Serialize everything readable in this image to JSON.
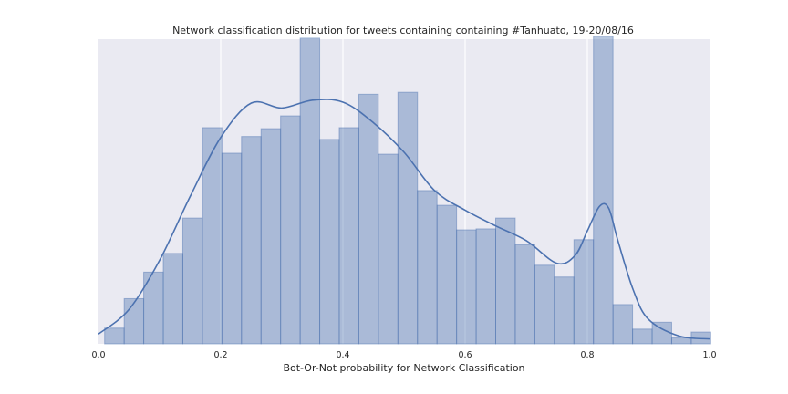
{
  "chart_data": {
    "type": "bar",
    "title": "Network classification distribution for tweets containing containing #Tanhuato, 19-20/08/16",
    "xlabel": "Bot-Or-Not probability for Network Classification",
    "ylabel": "",
    "xlim": [
      0.0,
      1.0
    ],
    "ylim": [
      0,
      310
    ],
    "x_ticks": [
      "0.0",
      "0.2",
      "0.4",
      "0.6",
      "0.8",
      "1.0"
    ],
    "grid": true,
    "histogram": {
      "bin_edges": [
        0.01,
        0.042,
        0.074,
        0.106,
        0.138,
        0.17,
        0.202,
        0.234,
        0.266,
        0.298,
        0.33,
        0.362,
        0.394,
        0.426,
        0.458,
        0.49,
        0.522,
        0.554,
        0.586,
        0.618,
        0.65,
        0.682,
        0.714,
        0.746,
        0.778,
        0.81,
        0.842,
        0.874,
        0.906,
        0.938,
        0.97,
        1.002
      ],
      "counts": [
        16,
        46,
        73,
        92,
        128,
        220,
        194,
        211,
        219,
        232,
        311,
        208,
        220,
        254,
        193,
        256,
        156,
        141,
        116,
        117,
        128,
        101,
        80,
        68,
        106,
        313,
        40,
        15,
        22,
        6,
        12
      ]
    },
    "kde": {
      "x": [
        0.0,
        0.05,
        0.1,
        0.15,
        0.2,
        0.25,
        0.3,
        0.35,
        0.4,
        0.45,
        0.5,
        0.55,
        0.6,
        0.65,
        0.7,
        0.75,
        0.78,
        0.8,
        0.82,
        0.835,
        0.85,
        0.875,
        0.9,
        0.95,
        1.0
      ],
      "y": [
        10,
        35,
        85,
        150,
        210,
        245,
        240,
        248,
        246,
        225,
        195,
        156,
        136,
        120,
        105,
        82,
        90,
        115,
        140,
        138,
        105,
        55,
        25,
        8,
        5
      ]
    }
  }
}
